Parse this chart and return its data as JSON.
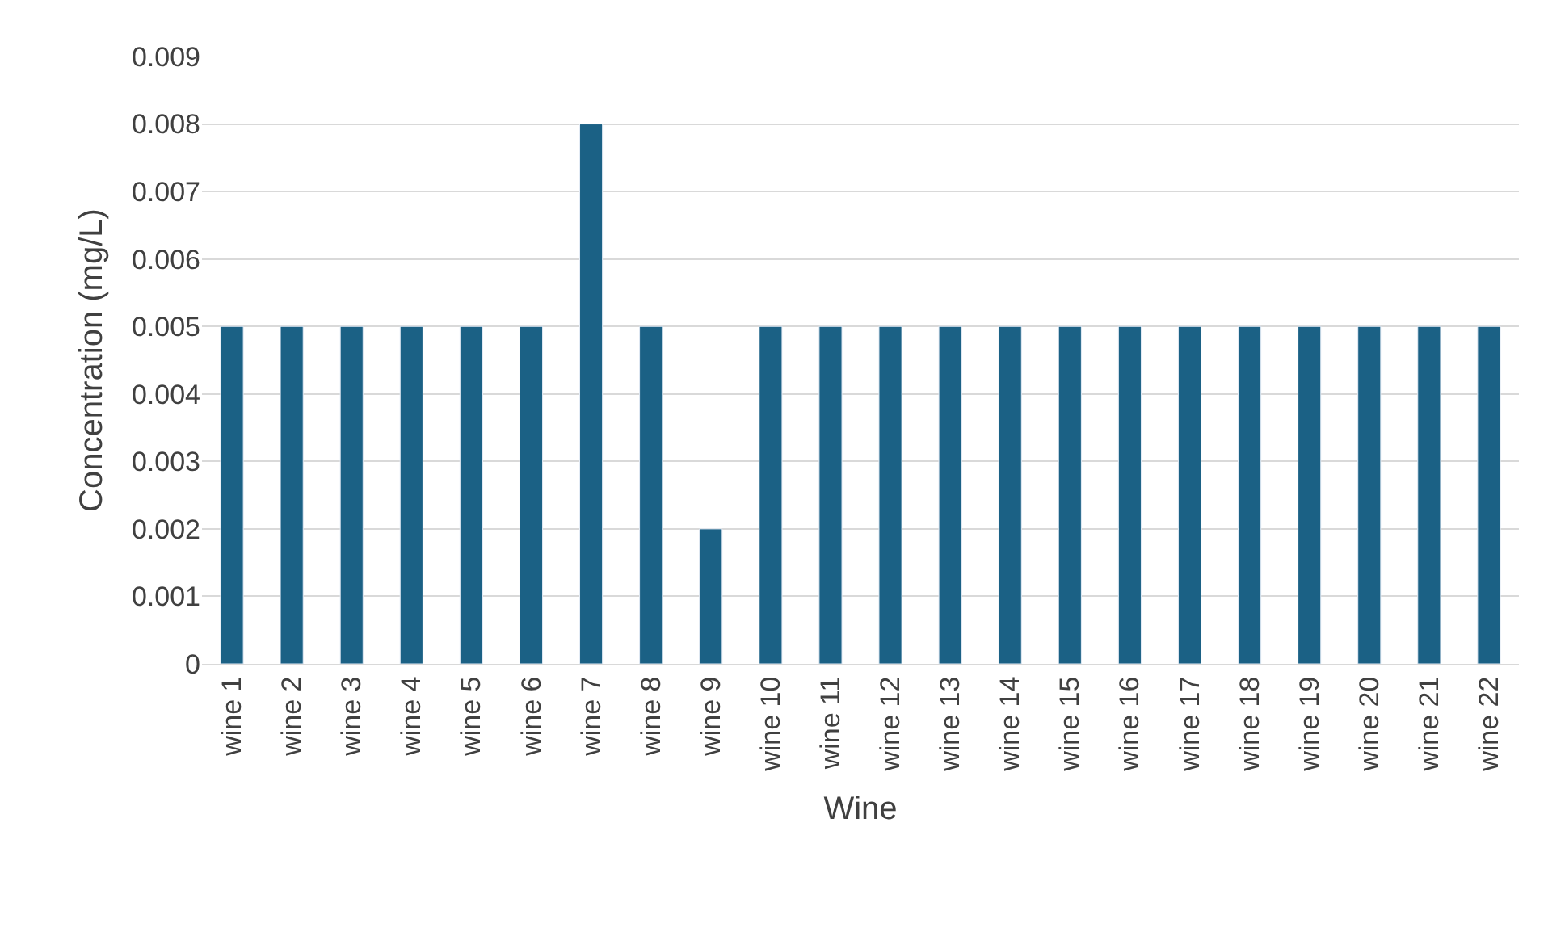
{
  "chart_data": {
    "type": "bar",
    "xlabel": "Wine",
    "ylabel": "Concentration (mg/L)",
    "categories": [
      "wine 1",
      "wine 2",
      "wine 3",
      "wine 4",
      "wine 5",
      "wine 6",
      "wine 7",
      "wine 8",
      "wine 9",
      "wine 10",
      "wine 11",
      "wine 12",
      "wine 13",
      "wine 14",
      "wine 15",
      "wine 16",
      "wine 17",
      "wine 18",
      "wine 19",
      "wine 20",
      "wine 21",
      "wine 22"
    ],
    "values": [
      0.005,
      0.005,
      0.005,
      0.005,
      0.005,
      0.005,
      0.008,
      0.005,
      0.002,
      0.005,
      0.005,
      0.005,
      0.005,
      0.005,
      0.005,
      0.005,
      0.005,
      0.005,
      0.005,
      0.005,
      0.005,
      0.005
    ],
    "color": "#1b6185",
    "ylim": [
      0,
      0.009
    ],
    "yticks": [
      0,
      0.001,
      0.002,
      0.003,
      0.004,
      0.005,
      0.006,
      0.007,
      0.008,
      0.009
    ],
    "grid": "y"
  }
}
